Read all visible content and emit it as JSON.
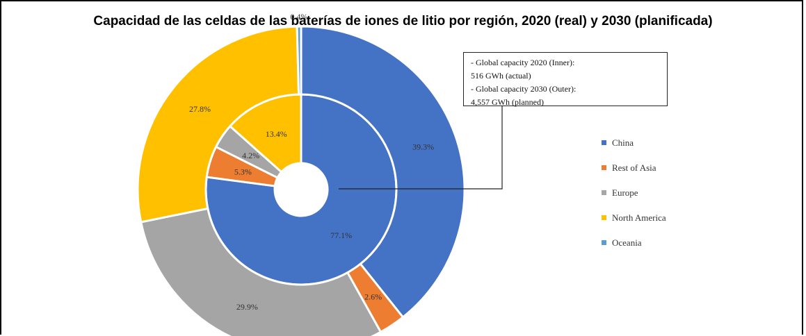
{
  "title": "Capacidad de las celdas de las baterías de iones de litio por región, 2020 (real) y 2030 (planificada)",
  "note_lines": [
    "- Global capacity 2020 (Inner):",
    "516 GWh (actual)",
    "- Global capacity 2030 (Outer):",
    "4,557 GWh (planned)"
  ],
  "chart_data": {
    "type": "pie",
    "subtype": "nested-donut",
    "legend_position": "right",
    "categories": [
      "China",
      "Rest of Asia",
      "Europe",
      "North America",
      "Oceania"
    ],
    "colors": [
      "#4472C4",
      "#ED7D31",
      "#A5A5A5",
      "#FFC000",
      "#5B9BD5"
    ],
    "series": [
      {
        "ring": "inner",
        "values": [
          77.1,
          5.3,
          4.2,
          13.4,
          0
        ],
        "labels": [
          "77.1%",
          "5.3%",
          "4.2%",
          "13.4%",
          ""
        ]
      },
      {
        "ring": "outer",
        "values": [
          39.3,
          2.6,
          29.9,
          27.8,
          0.4
        ],
        "labels": [
          "39.3%",
          "2.6%",
          "29.9%",
          "27.8%",
          "0.4%"
        ]
      }
    ]
  }
}
